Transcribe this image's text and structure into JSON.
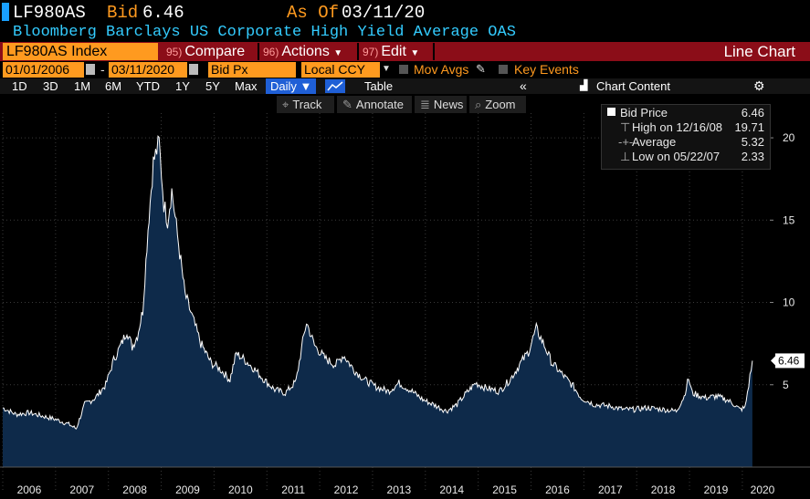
{
  "header": {
    "ticker": "LF980AS",
    "bid_label": "Bid",
    "bid_value": "6.46",
    "asof_label": "As Of",
    "asof_value": "03/11/20",
    "description": "Bloomberg Barclays US Corporate High Yield Average OAS"
  },
  "toolbar": {
    "index_label": "LF980AS Index",
    "compare_num": "95)",
    "compare_label": "Compare",
    "actions_num": "96)",
    "actions_label": "Actions",
    "edit_num": "97)",
    "edit_label": "Edit",
    "chart_type": "Line Chart"
  },
  "controls": {
    "start_date": "01/01/2006",
    "end_date": "03/11/2020",
    "field": "Bid Px",
    "currency": "Local CCY",
    "mov_avgs": "Mov Avgs",
    "key_events": "Key Events"
  },
  "periods": [
    "1D",
    "3D",
    "1M",
    "6M",
    "YTD",
    "1Y",
    "5Y",
    "Max"
  ],
  "frequency": "Daily",
  "table_label": "Table",
  "chart_content_label": "Chart Content",
  "tools": {
    "track": "Track",
    "annotate": "Annotate",
    "news": "News",
    "zoom": "Zoom"
  },
  "legend": {
    "title": "Bid Price",
    "title_value": "6.46",
    "high": "High on 12/16/08",
    "high_value": "19.71",
    "average": "Average",
    "average_value": "5.32",
    "low": "Low on 05/22/07",
    "low_value": "2.33"
  },
  "last_value_tag": "6.46",
  "colors": {
    "background": "#000000",
    "line": "#ffffff",
    "fill": "#0e2a4a",
    "accent": "#ff9a1f",
    "bar": "#8b0d18",
    "title": "#33ccff"
  },
  "chart_data": {
    "type": "area",
    "title": "",
    "xlabel": "",
    "ylabel": "",
    "ylim": [
      0,
      21.5
    ],
    "yticks": [
      5,
      10,
      15,
      20
    ],
    "xticks": [
      "2006",
      "2007",
      "2008",
      "2009",
      "2010",
      "2011",
      "2012",
      "2013",
      "2014",
      "2015",
      "2016",
      "2017",
      "2018",
      "2019",
      "2020"
    ],
    "grid": true,
    "series": [
      {
        "points": [
          [
            "2006.00",
            3.6
          ],
          [
            "2006.25",
            3.2
          ],
          [
            "2006.50",
            3.3
          ],
          [
            "2006.75",
            3.1
          ],
          [
            "2007.00",
            2.9
          ],
          [
            "2007.25",
            2.6
          ],
          [
            "2007.39",
            2.33
          ],
          [
            "2007.55",
            3.8
          ],
          [
            "2007.75",
            4.2
          ],
          [
            "2007.95",
            5.0
          ],
          [
            "2008.10",
            6.5
          ],
          [
            "2008.25",
            7.5
          ],
          [
            "2008.35",
            8.3
          ],
          [
            "2008.45",
            7.3
          ],
          [
            "2008.55",
            8.0
          ],
          [
            "2008.65",
            9.5
          ],
          [
            "2008.75",
            14.5
          ],
          [
            "2008.85",
            18.5
          ],
          [
            "2008.96",
            19.71
          ],
          [
            "2009.05",
            16.0
          ],
          [
            "2009.12",
            15.0
          ],
          [
            "2009.20",
            16.8
          ],
          [
            "2009.35",
            13.0
          ],
          [
            "2009.45",
            10.5
          ],
          [
            "2009.60",
            9.0
          ],
          [
            "2009.75",
            7.5
          ],
          [
            "2009.95",
            6.3
          ],
          [
            "2010.10",
            6.0
          ],
          [
            "2010.30",
            5.3
          ],
          [
            "2010.42",
            6.9
          ],
          [
            "2010.55",
            6.6
          ],
          [
            "2010.75",
            6.0
          ],
          [
            "2010.95",
            5.3
          ],
          [
            "2011.15",
            4.7
          ],
          [
            "2011.35",
            4.5
          ],
          [
            "2011.55",
            5.2
          ],
          [
            "2011.70",
            8.0
          ],
          [
            "2011.75",
            8.8
          ],
          [
            "2011.90",
            7.4
          ],
          [
            "2012.10",
            6.6
          ],
          [
            "2012.30",
            6.2
          ],
          [
            "2012.45",
            6.8
          ],
          [
            "2012.65",
            5.9
          ],
          [
            "2012.85",
            5.3
          ],
          [
            "2013.05",
            4.9
          ],
          [
            "2013.30",
            4.6
          ],
          [
            "2013.50",
            5.1
          ],
          [
            "2013.75",
            4.6
          ],
          [
            "2013.95",
            4.1
          ],
          [
            "2014.15",
            3.8
          ],
          [
            "2014.40",
            3.4
          ],
          [
            "2014.60",
            3.8
          ],
          [
            "2014.75",
            4.4
          ],
          [
            "2014.95",
            5.1
          ],
          [
            "2015.15",
            4.8
          ],
          [
            "2015.40",
            4.6
          ],
          [
            "2015.60",
            5.3
          ],
          [
            "2015.80",
            6.3
          ],
          [
            "2015.95",
            7.0
          ],
          [
            "2016.10",
            8.4
          ],
          [
            "2016.25",
            7.4
          ],
          [
            "2016.40",
            6.3
          ],
          [
            "2016.60",
            5.6
          ],
          [
            "2016.80",
            4.9
          ],
          [
            "2016.95",
            4.2
          ],
          [
            "2017.20",
            3.8
          ],
          [
            "2017.50",
            3.7
          ],
          [
            "2017.75",
            3.5
          ],
          [
            "2017.95",
            3.5
          ],
          [
            "2018.20",
            3.6
          ],
          [
            "2018.50",
            3.5
          ],
          [
            "2018.75",
            3.4
          ],
          [
            "2018.90",
            4.3
          ],
          [
            "2018.98",
            5.4
          ],
          [
            "2019.05",
            4.5
          ],
          [
            "2019.30",
            4.2
          ],
          [
            "2019.50",
            4.3
          ],
          [
            "2019.70",
            4.1
          ],
          [
            "2019.85",
            3.8
          ],
          [
            "2019.95",
            3.5
          ],
          [
            "2020.05",
            3.6
          ],
          [
            "2020.12",
            5.0
          ],
          [
            "2020.19",
            6.46
          ]
        ]
      }
    ]
  }
}
